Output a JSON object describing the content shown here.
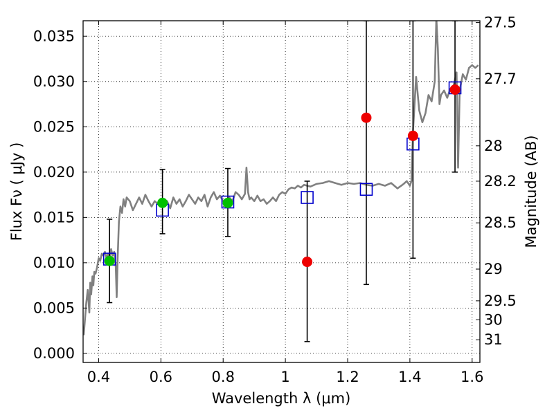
{
  "chart_data": {
    "type": "scatter",
    "xlabel": "Wavelength  λ (μm)",
    "ylabel": "Flux  Fν  ( μJy )",
    "ylabel_right": "Magnitude (AB)",
    "xlim": [
      0.35,
      1.625
    ],
    "ylim": [
      -0.001,
      0.0367
    ],
    "grid": true,
    "x_ticks": [
      0.4,
      0.6,
      0.8,
      1.0,
      1.2,
      1.4,
      1.6
    ],
    "x_tick_labels": [
      "0.4",
      "0.6",
      "0.8",
      "1",
      "1.2",
      "1.4",
      "1.6"
    ],
    "y_ticks": [
      0.0,
      0.005,
      0.01,
      0.015,
      0.02,
      0.025,
      0.03,
      0.035
    ],
    "y_tick_labels": [
      "0.000",
      "0.005",
      "0.010",
      "0.015",
      "0.020",
      "0.025",
      "0.030",
      "0.035"
    ],
    "right_ticks": [
      {
        "flux": 0.0365,
        "label": "27.5"
      },
      {
        "flux": 0.0303,
        "label": "27.7"
      },
      {
        "flux": 0.0229,
        "label": "28"
      },
      {
        "flux": 0.019,
        "label": "28.2"
      },
      {
        "flux": 0.0144,
        "label": "28.5"
      },
      {
        "flux": 0.0093,
        "label": "29"
      },
      {
        "flux": 0.0058,
        "label": "29.5"
      },
      {
        "flux": 0.0037,
        "label": "30"
      },
      {
        "flux": 0.0015,
        "label": "31"
      }
    ],
    "colors": {
      "model": "#808080",
      "squares": "#0000cc",
      "green": "#00c000",
      "red": "#ee0000",
      "errorbar": "#000000"
    },
    "model_spectrum": {
      "x": [
        0.352,
        0.36,
        0.365,
        0.37,
        0.373,
        0.376,
        0.38,
        0.383,
        0.386,
        0.39,
        0.395,
        0.4,
        0.405,
        0.41,
        0.415,
        0.42,
        0.425,
        0.43,
        0.435,
        0.44,
        0.445,
        0.45,
        0.455,
        0.458,
        0.461,
        0.465,
        0.47,
        0.475,
        0.48,
        0.485,
        0.49,
        0.5,
        0.51,
        0.52,
        0.53,
        0.54,
        0.55,
        0.56,
        0.57,
        0.58,
        0.59,
        0.6,
        0.61,
        0.62,
        0.63,
        0.64,
        0.65,
        0.66,
        0.67,
        0.68,
        0.69,
        0.7,
        0.71,
        0.72,
        0.73,
        0.74,
        0.75,
        0.76,
        0.77,
        0.78,
        0.79,
        0.8,
        0.81,
        0.82,
        0.83,
        0.84,
        0.85,
        0.86,
        0.87,
        0.875,
        0.88,
        0.885,
        0.89,
        0.9,
        0.91,
        0.92,
        0.93,
        0.94,
        0.95,
        0.96,
        0.97,
        0.98,
        0.99,
        1.0,
        1.01,
        1.02,
        1.03,
        1.04,
        1.05,
        1.06,
        1.08,
        1.1,
        1.12,
        1.14,
        1.16,
        1.18,
        1.2,
        1.22,
        1.24,
        1.26,
        1.28,
        1.3,
        1.32,
        1.34,
        1.36,
        1.38,
        1.39,
        1.4,
        1.405,
        1.41,
        1.42,
        1.43,
        1.44,
        1.45,
        1.46,
        1.47,
        1.48,
        1.485,
        1.49,
        1.495,
        1.5,
        1.51,
        1.52,
        1.53,
        1.54,
        1.55,
        1.555,
        1.56,
        1.57,
        1.58,
        1.59,
        1.6,
        1.61,
        1.62
      ],
      "y": [
        0.002,
        0.0055,
        0.007,
        0.0045,
        0.0078,
        0.0065,
        0.0085,
        0.0075,
        0.009,
        0.0088,
        0.0095,
        0.0105,
        0.0102,
        0.011,
        0.0108,
        0.0112,
        0.0105,
        0.011,
        0.0103,
        0.0115,
        0.0108,
        0.0112,
        0.0095,
        0.0062,
        0.0105,
        0.0145,
        0.0162,
        0.0155,
        0.017,
        0.0162,
        0.0172,
        0.0168,
        0.0158,
        0.0165,
        0.0172,
        0.0165,
        0.0175,
        0.0168,
        0.0162,
        0.0168,
        0.0165,
        0.0163,
        0.0165,
        0.0168,
        0.016,
        0.0172,
        0.0165,
        0.017,
        0.0162,
        0.0168,
        0.0175,
        0.017,
        0.0165,
        0.0172,
        0.0168,
        0.0175,
        0.0162,
        0.0172,
        0.0178,
        0.017,
        0.0174,
        0.0168,
        0.0165,
        0.0172,
        0.0168,
        0.0178,
        0.0175,
        0.017,
        0.0176,
        0.0205,
        0.0178,
        0.017,
        0.0172,
        0.0168,
        0.0174,
        0.0168,
        0.017,
        0.0165,
        0.0168,
        0.0172,
        0.0168,
        0.0175,
        0.0178,
        0.0176,
        0.0181,
        0.0183,
        0.0182,
        0.0185,
        0.0183,
        0.0186,
        0.0184,
        0.0187,
        0.0188,
        0.019,
        0.0188,
        0.0186,
        0.0188,
        0.0187,
        0.0188,
        0.0186,
        0.0185,
        0.0187,
        0.0185,
        0.0188,
        0.0182,
        0.0187,
        0.019,
        0.0185,
        0.019,
        0.0245,
        0.0305,
        0.0268,
        0.0255,
        0.0265,
        0.0285,
        0.0278,
        0.03,
        0.037,
        0.0336,
        0.0275,
        0.0285,
        0.029,
        0.0282,
        0.0292,
        0.0295,
        0.031,
        0.0205,
        0.029,
        0.0308,
        0.0302,
        0.0315,
        0.0318,
        0.0315,
        0.0318
      ]
    },
    "synthetic_photometry_squares": [
      {
        "x": 0.435,
        "y": 0.0104
      },
      {
        "x": 0.605,
        "y": 0.0158
      },
      {
        "x": 0.815,
        "y": 0.0167
      },
      {
        "x": 1.07,
        "y": 0.0172
      },
      {
        "x": 1.26,
        "y": 0.0181
      },
      {
        "x": 1.41,
        "y": 0.0231
      },
      {
        "x": 1.545,
        "y": 0.0293
      }
    ],
    "detections_green": [
      {
        "x": 0.435,
        "y": 0.0102,
        "yerr_low": 0.0056,
        "yerr_high": 0.0148
      },
      {
        "x": 0.605,
        "y": 0.0166,
        "yerr_low": 0.0132,
        "yerr_high": 0.0203
      },
      {
        "x": 0.815,
        "y": 0.0166,
        "yerr_low": 0.0129,
        "yerr_high": 0.0204
      }
    ],
    "measurements_red": [
      {
        "x": 1.07,
        "y": 0.0101,
        "yerr_low": 0.0013,
        "yerr_high": 0.019
      },
      {
        "x": 1.26,
        "y": 0.026,
        "yerr_low": 0.0076,
        "yerr_high": 0.0367
      },
      {
        "x": 1.41,
        "y": 0.024,
        "yerr_low": 0.0105,
        "yerr_high": 0.0367
      },
      {
        "x": 1.545,
        "y": 0.0291,
        "yerr_low": 0.02,
        "yerr_high": 0.0367
      }
    ]
  }
}
